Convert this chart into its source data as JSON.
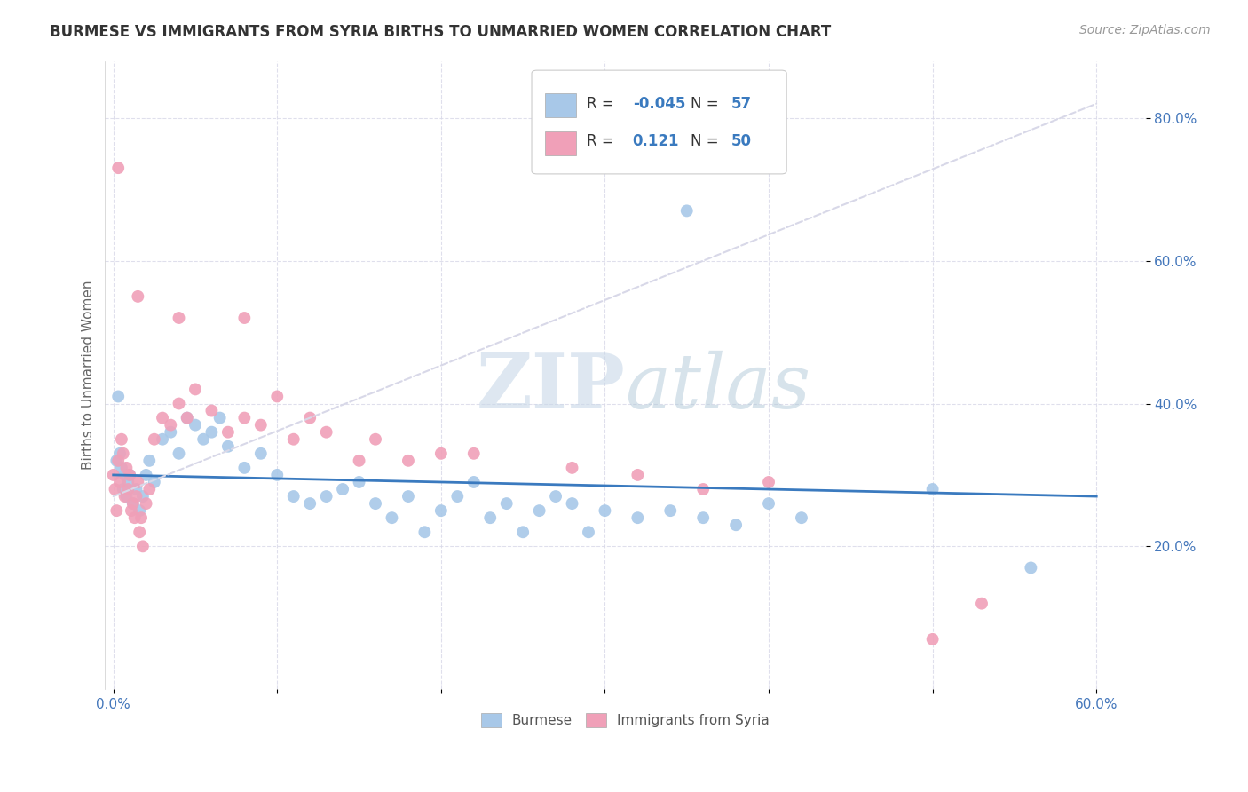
{
  "title": "BURMESE VS IMMIGRANTS FROM SYRIA BIRTHS TO UNMARRIED WOMEN CORRELATION CHART",
  "source": "Source: ZipAtlas.com",
  "ylabel": "Births to Unmarried Women",
  "burmese_color": "#a8c8e8",
  "syria_color": "#f0a0b8",
  "burmese_line_color": "#3a7abf",
  "syria_line_color": "#c87090",
  "watermark_color": "#c8d8e8",
  "legend_r1": "-0.045",
  "legend_n1": "57",
  "legend_r2": "0.121",
  "legend_n2": "50",
  "grid_color": "#d8d8e8",
  "tick_color": "#4477bb",
  "ytick_values": [
    0.2,
    0.4,
    0.6,
    0.8
  ],
  "ytick_labels": [
    "20.0%",
    "40.0%",
    "60.0%",
    "80.0%"
  ],
  "xtick_values": [
    0.0,
    0.6
  ],
  "xtick_labels": [
    "0.0%",
    "60.0%"
  ],
  "xlim": [
    -0.005,
    0.63
  ],
  "ylim": [
    0.0,
    0.88
  ],
  "burmese_x": [
    0.002,
    0.003,
    0.004,
    0.005,
    0.006,
    0.007,
    0.008,
    0.009,
    0.01,
    0.012,
    0.014,
    0.016,
    0.018,
    0.02,
    0.022,
    0.025,
    0.03,
    0.035,
    0.04,
    0.045,
    0.05,
    0.055,
    0.06,
    0.065,
    0.07,
    0.08,
    0.09,
    0.1,
    0.11,
    0.12,
    0.13,
    0.14,
    0.15,
    0.16,
    0.17,
    0.18,
    0.19,
    0.2,
    0.21,
    0.22,
    0.23,
    0.24,
    0.25,
    0.26,
    0.27,
    0.28,
    0.29,
    0.3,
    0.32,
    0.34,
    0.36,
    0.38,
    0.4,
    0.42,
    0.5,
    0.56,
    0.35
  ],
  "burmese_y": [
    0.32,
    0.41,
    0.33,
    0.31,
    0.28,
    0.3,
    0.27,
    0.29,
    0.3,
    0.26,
    0.28,
    0.25,
    0.27,
    0.3,
    0.32,
    0.29,
    0.35,
    0.36,
    0.33,
    0.38,
    0.37,
    0.35,
    0.36,
    0.38,
    0.34,
    0.31,
    0.33,
    0.3,
    0.27,
    0.26,
    0.27,
    0.28,
    0.29,
    0.26,
    0.24,
    0.27,
    0.22,
    0.25,
    0.27,
    0.29,
    0.24,
    0.26,
    0.22,
    0.25,
    0.27,
    0.26,
    0.22,
    0.25,
    0.24,
    0.25,
    0.24,
    0.23,
    0.26,
    0.24,
    0.28,
    0.17,
    0.67
  ],
  "syria_x": [
    0.0,
    0.001,
    0.002,
    0.003,
    0.004,
    0.005,
    0.006,
    0.007,
    0.008,
    0.009,
    0.01,
    0.011,
    0.012,
    0.013,
    0.014,
    0.015,
    0.016,
    0.017,
    0.018,
    0.02,
    0.022,
    0.025,
    0.03,
    0.035,
    0.04,
    0.045,
    0.05,
    0.06,
    0.07,
    0.08,
    0.09,
    0.1,
    0.11,
    0.12,
    0.13,
    0.15,
    0.16,
    0.18,
    0.2,
    0.22,
    0.28,
    0.32,
    0.36,
    0.4,
    0.5,
    0.53,
    0.015,
    0.04,
    0.08,
    0.003
  ],
  "syria_y": [
    0.3,
    0.28,
    0.25,
    0.32,
    0.29,
    0.35,
    0.33,
    0.27,
    0.31,
    0.28,
    0.3,
    0.25,
    0.26,
    0.24,
    0.27,
    0.29,
    0.22,
    0.24,
    0.2,
    0.26,
    0.28,
    0.35,
    0.38,
    0.37,
    0.4,
    0.38,
    0.42,
    0.39,
    0.36,
    0.38,
    0.37,
    0.41,
    0.35,
    0.38,
    0.36,
    0.32,
    0.35,
    0.32,
    0.33,
    0.33,
    0.31,
    0.3,
    0.28,
    0.29,
    0.07,
    0.12,
    0.55,
    0.52,
    0.52,
    0.73
  ]
}
